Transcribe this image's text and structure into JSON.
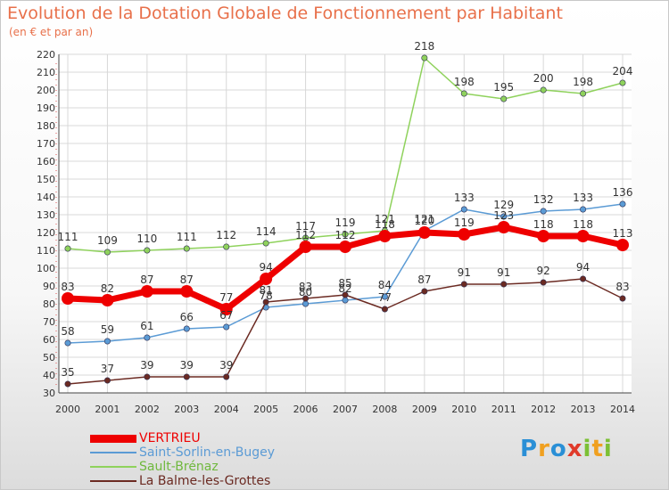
{
  "title": "Evolution de la Dotation Globale de Fonctionnement par Habitant",
  "subtitle": "(en € et par an)",
  "logo": "Proxiti",
  "chart_data": {
    "type": "line",
    "title": "Evolution de la Dotation Globale de Fonctionnement par Habitant",
    "subtitle": "(en € et par an)",
    "xlabel": "",
    "ylabel": "",
    "x": [
      "2000",
      "2001",
      "2002",
      "2003",
      "2004",
      "2005",
      "2006",
      "2007",
      "2008",
      "2009",
      "2010",
      "2011",
      "2012",
      "2013",
      "2014"
    ],
    "ylim": [
      30,
      220
    ],
    "yticks": [
      30,
      40,
      50,
      60,
      70,
      80,
      90,
      100,
      110,
      120,
      130,
      140,
      150,
      160,
      170,
      180,
      190,
      200,
      210,
      220
    ],
    "grid": true,
    "legend_position": "bottom-left",
    "series": [
      {
        "name": "VERTRIEU",
        "color": "#ee0000",
        "values": [
          83,
          82,
          87,
          87,
          77,
          94,
          112,
          112,
          118,
          120,
          119,
          123,
          118,
          118,
          113
        ],
        "labels": [
          "83",
          "82",
          "87",
          "87",
          "77",
          "94",
          "112",
          "112",
          "118",
          "120",
          "119",
          "123",
          "118",
          "118",
          "113"
        ]
      },
      {
        "name": "Saint-Sorlin-en-Bugey",
        "color": "#5b9bd5",
        "values": [
          58,
          59,
          61,
          66,
          67,
          78,
          80,
          82,
          84,
          121,
          133,
          129,
          132,
          133,
          136
        ],
        "labels": [
          "58",
          "59",
          "61",
          "66",
          "67",
          "78",
          "80",
          "82",
          "84",
          "121",
          "133",
          "129",
          "132",
          "133",
          "136"
        ]
      },
      {
        "name": "Sault-Brénaz",
        "color": "#8fd25c",
        "values": [
          111,
          109,
          110,
          111,
          112,
          114,
          117,
          119,
          121,
          218,
          198,
          195,
          200,
          198,
          204
        ],
        "labels": [
          "111",
          "109",
          "110",
          "111",
          "112",
          "114",
          "117",
          "119",
          "121",
          "218",
          "198",
          "195",
          "200",
          "198",
          "204"
        ]
      },
      {
        "name": "La Balme-les-Grottes",
        "color": "#6b2a22",
        "values": [
          35,
          37,
          39,
          39,
          39,
          81,
          83,
          85,
          77,
          87,
          91,
          91,
          92,
          94,
          83
        ],
        "labels": [
          "35",
          "37",
          "39",
          "39",
          "39",
          "81",
          "83",
          "85",
          "77",
          "87",
          "91",
          "91",
          "92",
          "94",
          "83"
        ]
      }
    ]
  }
}
